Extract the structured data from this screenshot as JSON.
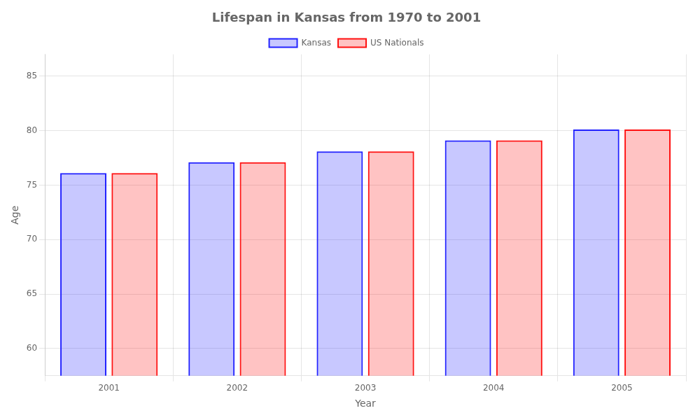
{
  "chart_data": {
    "type": "bar",
    "title": "Lifespan in Kansas from 1970 to 2001",
    "x_label": "Year",
    "y_label": "Age",
    "categories": [
      "2001",
      "2002",
      "2003",
      "2004",
      "2005"
    ],
    "series": [
      {
        "name": "Kansas",
        "color": "#2222ff",
        "values": [
          76.1,
          77.1,
          78.1,
          79.1,
          80.1
        ]
      },
      {
        "name": "US Nationals",
        "color": "#ff1111",
        "values": [
          76.1,
          77.1,
          78.1,
          79.1,
          80.1
        ]
      }
    ],
    "ylim": [
      57.5,
      87
    ],
    "yticks": [
      60,
      65,
      70,
      75,
      80,
      85
    ],
    "grid": true,
    "legend": "top"
  }
}
